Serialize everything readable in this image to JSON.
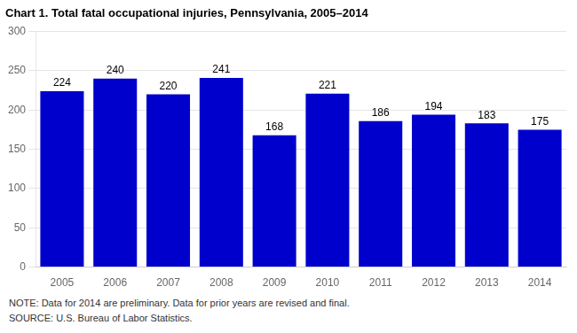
{
  "chart_data": {
    "type": "bar",
    "title": "Chart 1. Total fatal occupational injuries, Pennsylvania, 2005–2014",
    "categories": [
      "2005",
      "2006",
      "2007",
      "2008",
      "2009",
      "2010",
      "2011",
      "2012",
      "2013",
      "2014"
    ],
    "values": [
      224,
      240,
      220,
      241,
      168,
      221,
      186,
      194,
      183,
      175
    ],
    "color": "#0000cc",
    "ylim": [
      0,
      300
    ],
    "yticks": [
      0,
      50,
      100,
      150,
      200,
      250,
      300
    ],
    "grid": true,
    "data_labels": true,
    "annotations": [
      "NOTE: Data for 2014 are preliminary. Data for prior years are revised and final.",
      "SOURCE: U.S. Bureau of Labor Statistics."
    ]
  }
}
